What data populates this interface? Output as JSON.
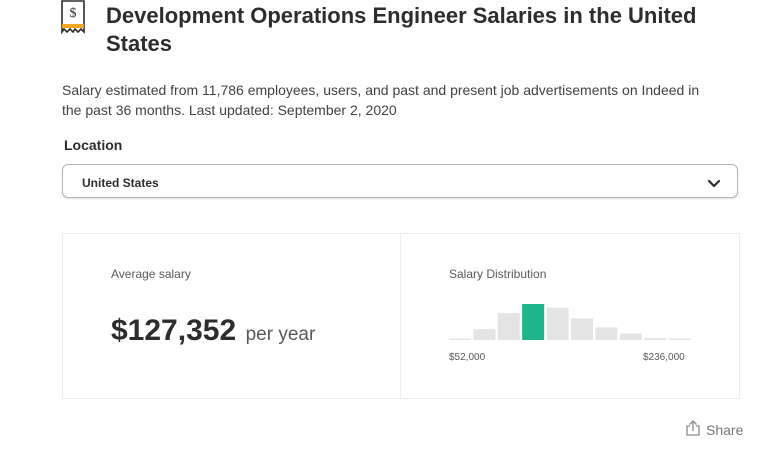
{
  "header": {
    "title": "Development Operations Engineer Salaries in the United States",
    "icon": "dollar-document-icon"
  },
  "estimate_text": "Salary estimated from 11,786 employees, users, and past and present job advertisements on Indeed in the past 36 months. Last updated: September 2, 2020",
  "location": {
    "label": "Location",
    "selected": "United States"
  },
  "salary": {
    "average_label": "Average salary",
    "amount": "$127,352",
    "period": "per year"
  },
  "distribution": {
    "label": "Salary Distribution",
    "min_label": "$52,000",
    "max_label": "$236,000",
    "relative_heights": [
      0.03,
      0.3,
      0.75,
      1.0,
      0.9,
      0.6,
      0.35,
      0.18,
      0.06,
      0.03
    ],
    "highlight_index": 3,
    "bar_color": "#e4e4e4",
    "highlight_color": "#1fb48c"
  },
  "share_label": "Share"
}
